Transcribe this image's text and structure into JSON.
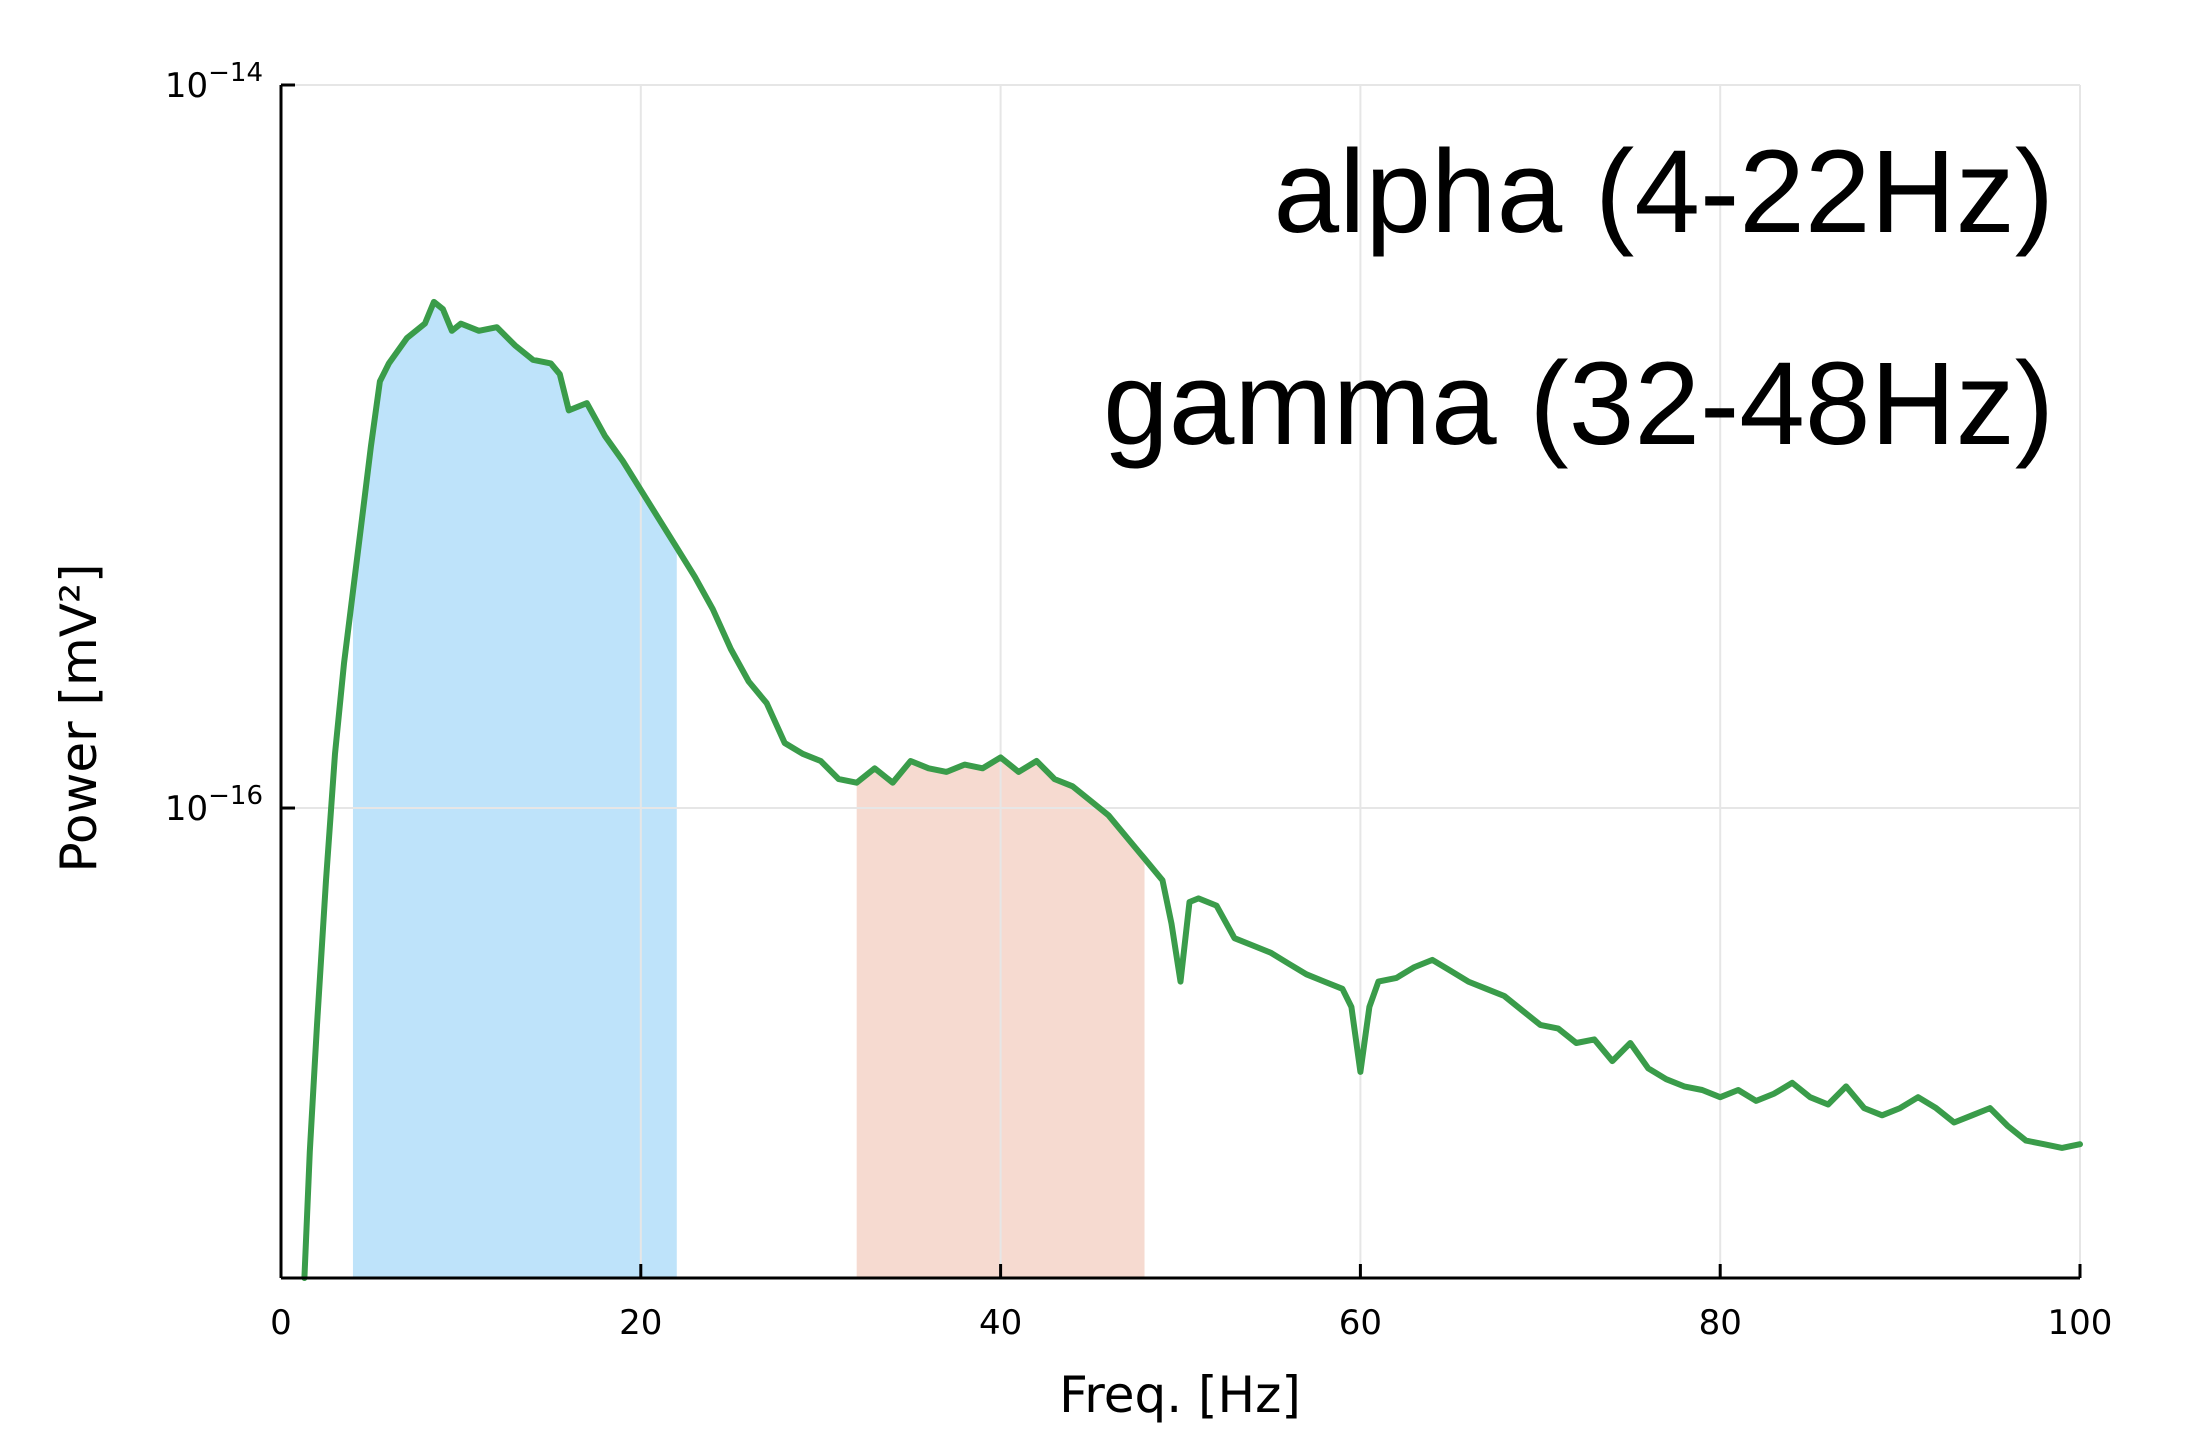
{
  "chart_data": {
    "type": "line",
    "title": "",
    "xlabel": "Freq. [Hz]",
    "ylabel": "Power [mV²]",
    "xlim": [
      0,
      100
    ],
    "ylim_log10": [
      -17.3,
      -14
    ],
    "y_scale": "log",
    "grid": true,
    "x_ticks": [
      0,
      20,
      40,
      60,
      80,
      100
    ],
    "x_tick_labels": [
      "0",
      "20",
      "40",
      "60",
      "80",
      "100"
    ],
    "y_ticks": [
      {
        "base": "10",
        "exp": "−14",
        "log10": -14
      },
      {
        "base": "10",
        "exp": "−16",
        "log10": -16
      }
    ],
    "annotations": [
      "alpha (4-22Hz)",
      "gamma (32-48Hz)"
    ],
    "bands": [
      {
        "name": "alpha",
        "from_hz": 4,
        "to_hz": 22,
        "color": "#bee3fa"
      },
      {
        "name": "gamma",
        "from_hz": 32,
        "to_hz": 48,
        "color": "#f6dad0"
      }
    ],
    "line_color": "#3a9c4a",
    "series": [
      {
        "points": [
          [
            1.3,
            -17.3
          ],
          [
            1.6,
            -16.95
          ],
          [
            2.0,
            -16.6
          ],
          [
            2.5,
            -16.2
          ],
          [
            3.0,
            -15.85
          ],
          [
            3.5,
            -15.6
          ],
          [
            4.0,
            -15.4
          ],
          [
            4.5,
            -15.2
          ],
          [
            5.0,
            -15.0
          ],
          [
            5.5,
            -14.82
          ],
          [
            6.0,
            -14.77
          ],
          [
            7.0,
            -14.7
          ],
          [
            8.0,
            -14.66
          ],
          [
            8.5,
            -14.6
          ],
          [
            9.0,
            -14.62
          ],
          [
            9.5,
            -14.68
          ],
          [
            10.0,
            -14.66
          ],
          [
            11.0,
            -14.68
          ],
          [
            12.0,
            -14.67
          ],
          [
            13.0,
            -14.72
          ],
          [
            14.0,
            -14.76
          ],
          [
            15.0,
            -14.77
          ],
          [
            15.5,
            -14.8
          ],
          [
            16.0,
            -14.9
          ],
          [
            17.0,
            -14.88
          ],
          [
            18.0,
            -14.97
          ],
          [
            19.0,
            -15.04
          ],
          [
            20.0,
            -15.12
          ],
          [
            21.0,
            -15.2
          ],
          [
            22.0,
            -15.28
          ],
          [
            23.0,
            -15.36
          ],
          [
            24.0,
            -15.45
          ],
          [
            25.0,
            -15.56
          ],
          [
            26.0,
            -15.65
          ],
          [
            27.0,
            -15.71
          ],
          [
            28.0,
            -15.82
          ],
          [
            29.0,
            -15.85
          ],
          [
            30.0,
            -15.87
          ],
          [
            31.0,
            -15.92
          ],
          [
            32.0,
            -15.93
          ],
          [
            33.0,
            -15.89
          ],
          [
            34.0,
            -15.93
          ],
          [
            35.0,
            -15.87
          ],
          [
            36.0,
            -15.89
          ],
          [
            37.0,
            -15.9
          ],
          [
            38.0,
            -15.88
          ],
          [
            39.0,
            -15.89
          ],
          [
            40.0,
            -15.86
          ],
          [
            41.0,
            -15.9
          ],
          [
            42.0,
            -15.87
          ],
          [
            43.0,
            -15.92
          ],
          [
            44.0,
            -15.94
          ],
          [
            45.0,
            -15.98
          ],
          [
            46.0,
            -16.02
          ],
          [
            47.0,
            -16.08
          ],
          [
            48.0,
            -16.14
          ],
          [
            49.0,
            -16.2
          ],
          [
            49.5,
            -16.32
          ],
          [
            50.0,
            -16.48
          ],
          [
            50.5,
            -16.26
          ],
          [
            51.0,
            -16.25
          ],
          [
            52.0,
            -16.27
          ],
          [
            53.0,
            -16.36
          ],
          [
            54.0,
            -16.38
          ],
          [
            55.0,
            -16.4
          ],
          [
            56.0,
            -16.43
          ],
          [
            57.0,
            -16.46
          ],
          [
            58.0,
            -16.48
          ],
          [
            59.0,
            -16.5
          ],
          [
            59.5,
            -16.55
          ],
          [
            60.0,
            -16.73
          ],
          [
            60.5,
            -16.55
          ],
          [
            61.0,
            -16.48
          ],
          [
            62.0,
            -16.47
          ],
          [
            63.0,
            -16.44
          ],
          [
            64.0,
            -16.42
          ],
          [
            65.0,
            -16.45
          ],
          [
            66.0,
            -16.48
          ],
          [
            67.0,
            -16.5
          ],
          [
            68.0,
            -16.52
          ],
          [
            69.0,
            -16.56
          ],
          [
            70.0,
            -16.6
          ],
          [
            71.0,
            -16.61
          ],
          [
            72.0,
            -16.65
          ],
          [
            73.0,
            -16.64
          ],
          [
            74.0,
            -16.7
          ],
          [
            75.0,
            -16.65
          ],
          [
            76.0,
            -16.72
          ],
          [
            77.0,
            -16.75
          ],
          [
            78.0,
            -16.77
          ],
          [
            79.0,
            -16.78
          ],
          [
            80.0,
            -16.8
          ],
          [
            81.0,
            -16.78
          ],
          [
            82.0,
            -16.81
          ],
          [
            83.0,
            -16.79
          ],
          [
            84.0,
            -16.76
          ],
          [
            85.0,
            -16.8
          ],
          [
            86.0,
            -16.82
          ],
          [
            87.0,
            -16.77
          ],
          [
            88.0,
            -16.83
          ],
          [
            89.0,
            -16.85
          ],
          [
            90.0,
            -16.83
          ],
          [
            91.0,
            -16.8
          ],
          [
            92.0,
            -16.83
          ],
          [
            93.0,
            -16.87
          ],
          [
            94.0,
            -16.85
          ],
          [
            95.0,
            -16.83
          ],
          [
            96.0,
            -16.88
          ],
          [
            97.0,
            -16.92
          ],
          [
            98.0,
            -16.93
          ],
          [
            99.0,
            -16.94
          ],
          [
            100.0,
            -16.93
          ]
        ]
      }
    ]
  }
}
